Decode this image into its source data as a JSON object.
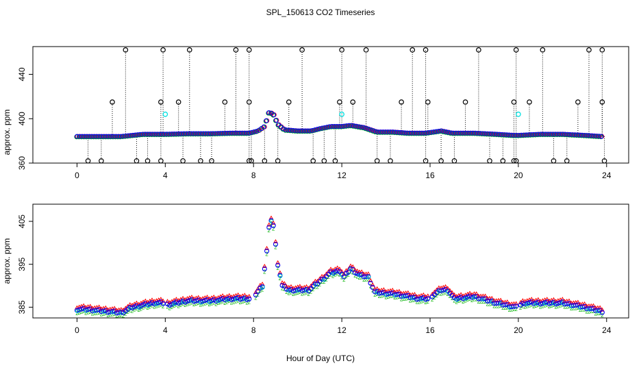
{
  "title": "SPL_150613  CO2 Timeseries",
  "chart_data": [
    {
      "type": "scatter",
      "panel": "top",
      "ylabel": "approx. ppm",
      "xlim": [
        -2,
        25
      ],
      "ylim": [
        360,
        465
      ],
      "xticks": [
        0,
        4,
        8,
        12,
        16,
        20,
        24
      ],
      "yticks": [
        360,
        400,
        440
      ],
      "series": [
        {
          "name": "black",
          "color": "#000000",
          "marker": "circle"
        },
        {
          "name": "red",
          "color": "#ff0000",
          "marker": "circle"
        },
        {
          "name": "green",
          "color": "#00b000",
          "marker": "circle"
        },
        {
          "name": "blue",
          "color": "#0000ff",
          "marker": "circle"
        },
        {
          "name": "cyan",
          "color": "#00e0e0",
          "marker": "circle"
        }
      ],
      "baseline": [
        [
          0,
          384
        ],
        [
          1,
          384
        ],
        [
          2,
          384
        ],
        [
          3,
          386
        ],
        [
          4,
          386
        ],
        [
          5,
          386.5
        ],
        [
          6,
          386.5
        ],
        [
          7,
          387
        ],
        [
          7.8,
          387
        ],
        [
          8.2,
          389
        ],
        [
          8.5,
          393
        ],
        [
          8.7,
          406
        ],
        [
          8.9,
          404
        ],
        [
          9.1,
          395
        ],
        [
          9.4,
          390
        ],
        [
          10,
          389
        ],
        [
          10.6,
          389
        ],
        [
          11,
          391
        ],
        [
          11.5,
          393
        ],
        [
          12,
          393
        ],
        [
          12.4,
          394
        ],
        [
          13,
          392
        ],
        [
          13.6,
          388
        ],
        [
          14.3,
          388
        ],
        [
          15,
          387
        ],
        [
          15.8,
          387
        ],
        [
          16.5,
          389
        ],
        [
          17,
          387
        ],
        [
          18,
          387
        ],
        [
          19,
          386
        ],
        [
          19.8,
          385
        ],
        [
          20,
          385
        ],
        [
          21,
          386
        ],
        [
          22,
          386
        ],
        [
          23,
          385
        ],
        [
          23.8,
          384
        ]
      ],
      "spikes_high": [
        2.2,
        3.9,
        5.1,
        7.2,
        7.8,
        10.2,
        12,
        13.1,
        15.2,
        15.8,
        18.2,
        19.9,
        21.1,
        23.2,
        23.8
      ],
      "spikes_mid": [
        1.6,
        3.8,
        4.6,
        6.7,
        7.8,
        9.6,
        11.9,
        12.5,
        14.7,
        15.9,
        17.6,
        19.8,
        20.5,
        22.7,
        23.8
      ],
      "spikes_low": [
        0.5,
        1.1,
        2.7,
        3.2,
        3.8,
        4.8,
        5.6,
        6.1,
        7.8,
        7.9,
        8.5,
        9.1,
        10.7,
        11.2,
        11.7,
        13.6,
        14.2,
        15.8,
        16.5,
        17.1,
        18.7,
        19.3,
        19.8,
        19.9,
        21.6,
        22.2,
        23.9
      ],
      "cyan_points": [
        [
          4,
          404
        ],
        [
          12,
          404
        ],
        [
          20,
          404
        ]
      ]
    },
    {
      "type": "scatter",
      "panel": "bottom",
      "ylabel": "approx. ppm",
      "xlabel": "Hour of Day (UTC)",
      "xlim": [
        -2,
        25
      ],
      "ylim": [
        382.5,
        409
      ],
      "xticks": [
        0,
        4,
        8,
        12,
        16,
        20,
        24
      ],
      "yticks": [
        385,
        395,
        405
      ],
      "series": [
        {
          "name": "red",
          "color": "#ff0000",
          "marker": "triangle"
        },
        {
          "name": "green",
          "color": "#00b000",
          "marker": "number"
        },
        {
          "name": "blue",
          "color": "#0000ff",
          "marker": "circle"
        },
        {
          "name": "cyan",
          "color": "#00c8c8",
          "marker": "circle"
        }
      ],
      "baseline": [
        [
          0,
          384.5
        ],
        [
          0.5,
          384.5
        ],
        [
          1,
          384.2
        ],
        [
          1.5,
          384
        ],
        [
          2,
          383.7
        ],
        [
          2.5,
          385
        ],
        [
          3,
          385.5
        ],
        [
          3.5,
          386
        ],
        [
          3.9,
          386
        ],
        [
          4,
          385.5
        ],
        [
          4.5,
          386
        ],
        [
          5,
          386.5
        ],
        [
          6,
          386.5
        ],
        [
          7,
          387
        ],
        [
          7.8,
          387
        ],
        [
          8.1,
          388
        ],
        [
          8.4,
          390
        ],
        [
          8.6,
          398
        ],
        [
          8.75,
          406
        ],
        [
          8.9,
          404
        ],
        [
          9.1,
          395
        ],
        [
          9.3,
          390
        ],
        [
          9.6,
          389
        ],
        [
          10.5,
          389
        ],
        [
          11,
          391
        ],
        [
          11.5,
          393
        ],
        [
          11.9,
          393.5
        ],
        [
          12.1,
          392
        ],
        [
          12.4,
          394
        ],
        [
          12.8,
          392.5
        ],
        [
          13.2,
          392
        ],
        [
          13.5,
          388.5
        ],
        [
          14.5,
          388
        ],
        [
          15.5,
          387
        ],
        [
          15.9,
          387
        ],
        [
          16.2,
          388
        ],
        [
          16.5,
          389
        ],
        [
          16.8,
          389
        ],
        [
          17.1,
          387
        ],
        [
          18,
          387.5
        ],
        [
          19,
          386
        ],
        [
          19.9,
          385
        ],
        [
          20.3,
          386
        ],
        [
          21,
          386
        ],
        [
          22,
          386
        ],
        [
          23,
          385
        ],
        [
          23.8,
          384
        ]
      ],
      "gaps": [
        [
          3.95,
          4.05
        ],
        [
          7.85,
          8.05
        ],
        [
          15.95,
          16.05
        ],
        [
          19.95,
          20.05
        ]
      ]
    }
  ]
}
